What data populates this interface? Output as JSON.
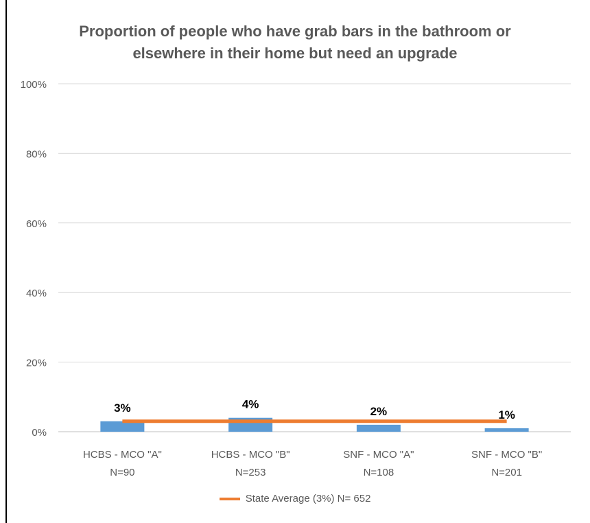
{
  "chart_data": {
    "type": "bar",
    "title": "Proportion of people who have grab bars in the bathroom or elsewhere in their home but need an upgrade",
    "categories": [
      "HCBS - MCO \"A\"",
      "HCBS - MCO \"B\"",
      "SNF - MCO \"A\"",
      "SNF - MCO \"B\""
    ],
    "category_n": [
      "N=90",
      "N=253",
      "N=108",
      "N=201"
    ],
    "series": [
      {
        "values": [
          3,
          4,
          2,
          1
        ],
        "data_labels": [
          "3%",
          "4%",
          "2%",
          "1%"
        ],
        "color": "#5B9BD5"
      }
    ],
    "reference_line": {
      "name": "State Average (3%) N= 652",
      "value": 3,
      "color": "#ED7D31"
    },
    "ylim": [
      0,
      100
    ],
    "yticks": [
      "0%",
      "20%",
      "40%",
      "60%",
      "80%",
      "100%"
    ],
    "ytick_values": [
      0,
      20,
      40,
      60,
      80,
      100
    ],
    "grid": true,
    "legend_position": "bottom"
  }
}
